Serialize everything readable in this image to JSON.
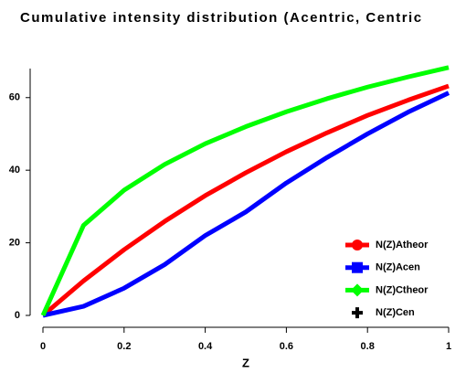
{
  "chart_data": {
    "type": "line",
    "title": "Cumulative intensity distribution (Acentric, Centric",
    "xlabel": "Z",
    "x": [
      0,
      0.1,
      0.2,
      0.3,
      0.4,
      0.5,
      0.6,
      0.7,
      0.8,
      0.9,
      1
    ],
    "series": [
      {
        "name": "N(Z)Atheor",
        "color": "#ff0000",
        "marker": "circle",
        "values": [
          0,
          9.5,
          18.1,
          25.9,
          33.0,
          39.3,
          45.1,
          50.3,
          55.1,
          59.3,
          63.2
        ]
      },
      {
        "name": "N(Z)Acen",
        "color": "#0000ff",
        "marker": "square",
        "values": [
          0,
          2.5,
          7.5,
          14,
          22,
          28.5,
          36.5,
          43.5,
          50,
          56,
          61.3
        ]
      },
      {
        "name": "N(Z)Ctheor",
        "color": "#00ff00",
        "marker": "diamond",
        "values": [
          0,
          24.8,
          34.5,
          41.6,
          47.3,
          52.0,
          56.1,
          59.7,
          62.9,
          65.7,
          68.3
        ]
      },
      {
        "name": "N(Z)Cen",
        "color": "#000000",
        "marker": "cross",
        "values": [
          null,
          null,
          null,
          null,
          null,
          null,
          null,
          null,
          null,
          null,
          null
        ]
      }
    ],
    "xlim": [
      0,
      1
    ],
    "xticks": [
      0,
      0.2,
      0.4,
      0.6,
      0.8,
      1
    ],
    "ylim": [
      0,
      68
    ],
    "yticks": [
      0,
      20,
      40,
      60
    ],
    "legend": "lower right",
    "grid": false
  }
}
